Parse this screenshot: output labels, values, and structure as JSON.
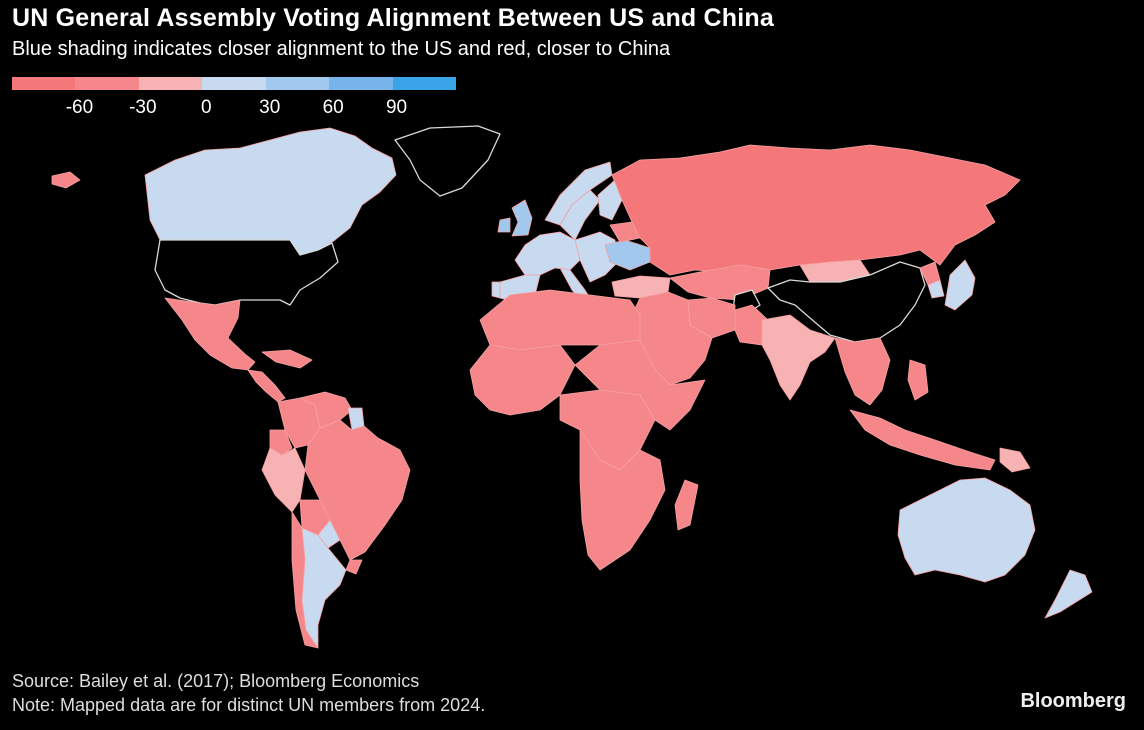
{
  "title": "UN General Assembly Voting Alignment Between US and China",
  "subtitle": "Blue shading indicates closer alignment to the US and red, closer to China",
  "legend": {
    "bins": [
      {
        "from": -90,
        "to": -60,
        "color": "#f4777a"
      },
      {
        "from": -60,
        "to": -30,
        "color": "#f5878a"
      },
      {
        "from": -30,
        "to": 0,
        "color": "#f7b2b4"
      },
      {
        "from": 0,
        "to": 30,
        "color": "#c7daf0"
      },
      {
        "from": 30,
        "to": 60,
        "color": "#a3c8ed"
      },
      {
        "from": 60,
        "to": 90,
        "color": "#78b4ea"
      },
      {
        "from": 90,
        "to": 120,
        "color": "#3aa4e8"
      }
    ],
    "ticks": [
      "-60",
      "-30",
      "0",
      "30",
      "60",
      "90"
    ]
  },
  "chart_data": {
    "type": "choropleth",
    "categories": [
      {
        "name": "strong-china",
        "range": [
          -90,
          -60
        ]
      },
      {
        "name": "china",
        "range": [
          -60,
          -30
        ]
      },
      {
        "name": "lean-china",
        "range": [
          -30,
          0
        ]
      },
      {
        "name": "lean-us",
        "range": [
          0,
          30
        ]
      },
      {
        "name": "us",
        "range": [
          30,
          60
        ]
      },
      {
        "name": "strong-us",
        "range": [
          60,
          90
        ]
      }
    ],
    "regions": [
      {
        "name": "Canada",
        "category": "lean-us"
      },
      {
        "name": "Greenland",
        "category": "no-data"
      },
      {
        "name": "United States",
        "category": "no-data"
      },
      {
        "name": "Mexico",
        "category": "china"
      },
      {
        "name": "Central America",
        "category": "china"
      },
      {
        "name": "Caribbean",
        "category": "china"
      },
      {
        "name": "Colombia",
        "category": "china"
      },
      {
        "name": "Venezuela",
        "category": "china"
      },
      {
        "name": "Guyana",
        "category": "lean-us"
      },
      {
        "name": "Ecuador",
        "category": "china"
      },
      {
        "name": "Peru",
        "category": "lean-china"
      },
      {
        "name": "Brazil",
        "category": "china"
      },
      {
        "name": "Bolivia",
        "category": "china"
      },
      {
        "name": "Paraguay",
        "category": "lean-us"
      },
      {
        "name": "Uruguay",
        "category": "china"
      },
      {
        "name": "Chile",
        "category": "china"
      },
      {
        "name": "Argentina",
        "category": "lean-us"
      },
      {
        "name": "Iceland",
        "category": "china"
      },
      {
        "name": "United Kingdom",
        "category": "us"
      },
      {
        "name": "Ireland",
        "category": "us"
      },
      {
        "name": "Norway",
        "category": "lean-us"
      },
      {
        "name": "Sweden",
        "category": "lean-us"
      },
      {
        "name": "Finland",
        "category": "lean-us"
      },
      {
        "name": "Western Europe",
        "category": "lean-us"
      },
      {
        "name": "Spain",
        "category": "lean-us"
      },
      {
        "name": "Portugal",
        "category": "lean-us"
      },
      {
        "name": "Italy",
        "category": "lean-us"
      },
      {
        "name": "Eastern Europe",
        "category": "lean-us"
      },
      {
        "name": "Ukraine",
        "category": "us"
      },
      {
        "name": "Belarus",
        "category": "china"
      },
      {
        "name": "Russia",
        "category": "strong-china"
      },
      {
        "name": "Turkey",
        "category": "lean-china"
      },
      {
        "name": "Central Asia",
        "category": "china"
      },
      {
        "name": "Mongolia",
        "category": "lean-china"
      },
      {
        "name": "China",
        "category": "no-data"
      },
      {
        "name": "Afghanistan",
        "category": "no-data"
      },
      {
        "name": "Middle East",
        "category": "china"
      },
      {
        "name": "Israel",
        "category": "lean-us"
      },
      {
        "name": "Iran",
        "category": "china"
      },
      {
        "name": "Pakistan",
        "category": "china"
      },
      {
        "name": "India",
        "category": "lean-china"
      },
      {
        "name": "Southeast Asia",
        "category": "china"
      },
      {
        "name": "Japan",
        "category": "lean-us"
      },
      {
        "name": "South Korea",
        "category": "lean-us"
      },
      {
        "name": "North Korea",
        "category": "china"
      },
      {
        "name": "Philippines",
        "category": "china"
      },
      {
        "name": "Indonesia",
        "category": "china"
      },
      {
        "name": "Papua New Guinea",
        "category": "lean-china"
      },
      {
        "name": "Australia",
        "category": "lean-us"
      },
      {
        "name": "New Zealand",
        "category": "lean-us"
      },
      {
        "name": "North Africa",
        "category": "china"
      },
      {
        "name": "West Africa",
        "category": "china"
      },
      {
        "name": "Central Africa",
        "category": "china"
      },
      {
        "name": "East Africa",
        "category": "china"
      },
      {
        "name": "Southern Africa",
        "category": "china"
      },
      {
        "name": "Madagascar",
        "category": "china"
      }
    ]
  },
  "source": "Source: Bailey et al. (2017); Bloomberg Economics",
  "note": "Note: Mapped data are for distinct UN members from 2024.",
  "brand": "Bloomberg",
  "colors": {
    "strong-china": "#f4777a",
    "china": "#f5878a",
    "lean-china": "#f7b2b4",
    "lean-us": "#c7daf0",
    "us": "#a3c8ed",
    "strong-us": "#78b4ea",
    "no-data": "#000000",
    "border-no-data": "#d9d9d9",
    "border": "#f5a0a2"
  }
}
